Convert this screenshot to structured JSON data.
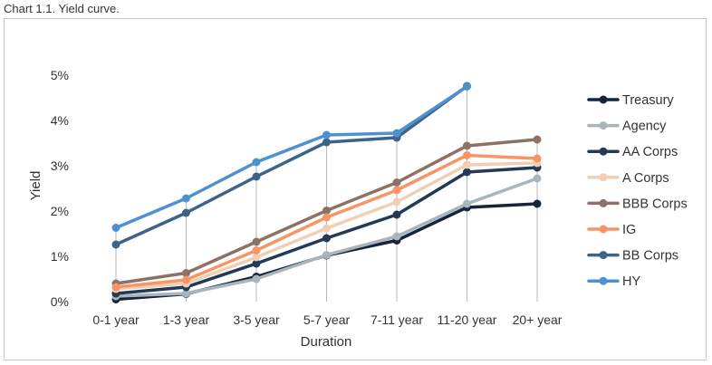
{
  "caption": "Chart 1.1. Yield curve.",
  "chart_data": {
    "type": "line",
    "title": "",
    "xlabel": "Duration",
    "ylabel": "Yield",
    "ylim": [
      0,
      5
    ],
    "yticks": [
      "0%",
      "1%",
      "2%",
      "3%",
      "4%",
      "5%"
    ],
    "grid": "vertical drop lines at each category",
    "legend_position": "right",
    "categories": [
      "0-1 year",
      "1-3 year",
      "3-5 year",
      "5-7 year",
      "7-11 year",
      "11-20 year",
      "20+ year"
    ],
    "series": [
      {
        "name": "Treasury",
        "color": "#14253d",
        "values": [
          0.05,
          0.17,
          0.55,
          1.02,
          1.35,
          2.08,
          2.16
        ]
      },
      {
        "name": "Agency",
        "color": "#a9b4bb",
        "values": [
          0.12,
          0.18,
          0.5,
          1.03,
          1.44,
          2.16,
          2.72
        ]
      },
      {
        "name": "AA Corps",
        "color": "#223a56",
        "values": [
          0.18,
          0.32,
          0.84,
          1.4,
          1.92,
          2.86,
          2.96
        ]
      },
      {
        "name": "A Corps",
        "color": "#f0cfb2",
        "values": [
          0.28,
          0.4,
          0.98,
          1.62,
          2.2,
          3.02,
          3.06
        ]
      },
      {
        "name": "BBB Corps",
        "color": "#8c7264",
        "values": [
          0.4,
          0.63,
          1.32,
          2.01,
          2.63,
          3.44,
          3.58
        ]
      },
      {
        "name": "IG",
        "color": "#f59568",
        "values": [
          0.32,
          0.48,
          1.13,
          1.86,
          2.46,
          3.23,
          3.16
        ]
      },
      {
        "name": "BB Corps",
        "color": "#3d6389",
        "values": [
          1.26,
          1.96,
          2.76,
          3.52,
          3.62,
          4.76,
          null
        ]
      },
      {
        "name": "HY",
        "color": "#4f90d3",
        "values": [
          1.63,
          2.28,
          3.08,
          3.68,
          3.72,
          4.75,
          null
        ]
      }
    ]
  }
}
